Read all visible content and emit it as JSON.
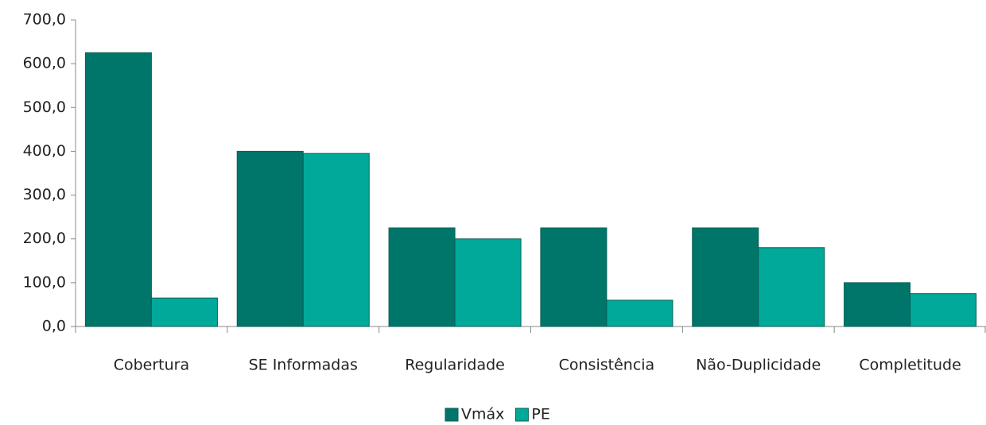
{
  "chart_data": {
    "type": "bar",
    "categories": [
      "Cobertura",
      "SE Informadas",
      "Regularidade",
      "Consistência",
      "Não-Duplicidade",
      "Completitude"
    ],
    "series": [
      {
        "name": "Vmáx",
        "color": "#00766a",
        "values": [
          625,
          400,
          225,
          225,
          225,
          100
        ]
      },
      {
        "name": "PE",
        "color": "#00a99a",
        "values": [
          65,
          395,
          200,
          60,
          180,
          75
        ]
      }
    ],
    "ylim": [
      0,
      700
    ],
    "yticks": [
      {
        "value": 0,
        "label": "0,0"
      },
      {
        "value": 100,
        "label": "100,0"
      },
      {
        "value": 200,
        "label": "200,0"
      },
      {
        "value": 300,
        "label": "300,0"
      },
      {
        "value": 400,
        "label": "400,0"
      },
      {
        "value": 500,
        "label": "500,0"
      },
      {
        "value": 600,
        "label": "600,0"
      },
      {
        "value": 700,
        "label": "700,0"
      }
    ],
    "legend": "bottom"
  }
}
